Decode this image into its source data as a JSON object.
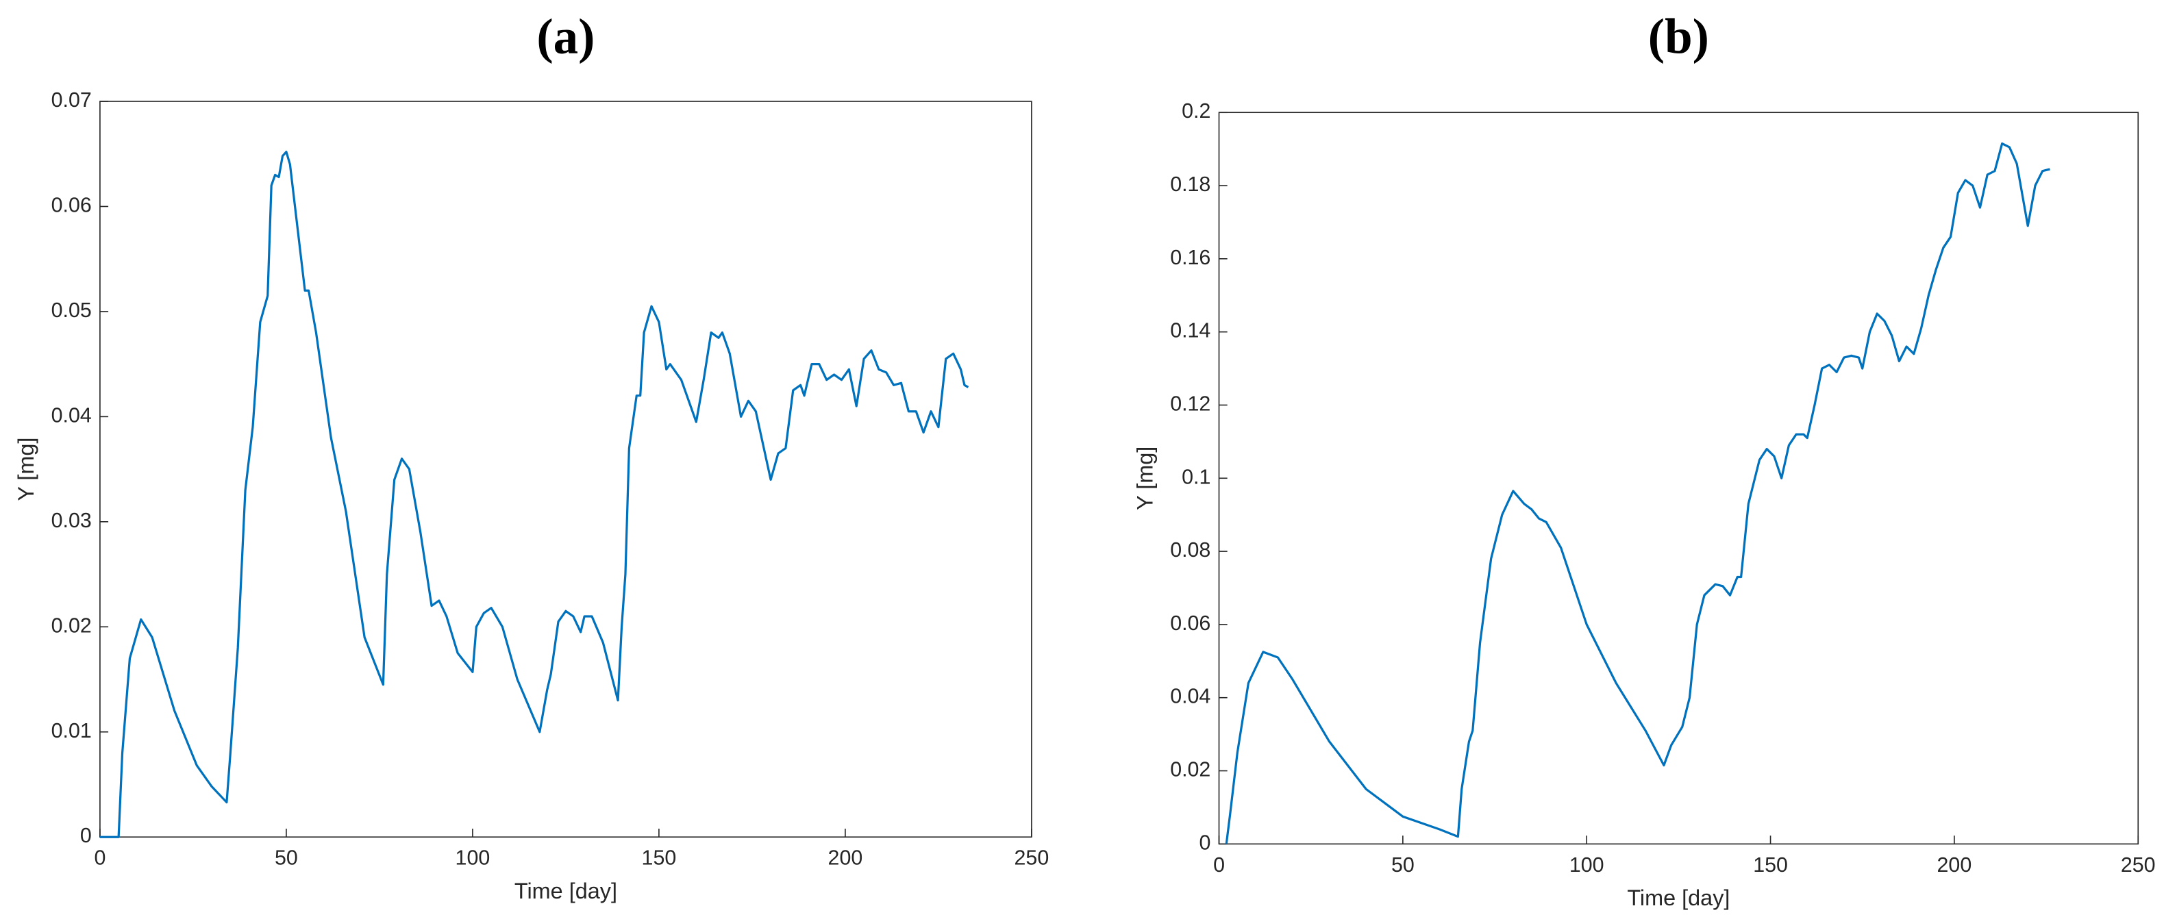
{
  "chart_data": [
    {
      "type": "line",
      "title": "(a)",
      "x_label": "Time [day]",
      "y_label": "Y [mg]",
      "color": "#0072bd",
      "x": [
        0,
        5,
        6,
        8,
        11,
        14,
        20,
        26,
        30,
        34,
        35,
        37,
        39,
        41,
        43,
        45,
        46,
        47,
        48,
        49,
        50,
        51,
        53,
        55,
        56,
        58,
        62,
        66,
        71,
        76,
        77,
        79,
        81,
        83,
        86,
        89,
        91,
        93,
        96,
        100,
        101,
        103,
        105,
        108,
        112,
        118,
        120,
        121,
        123,
        125,
        127,
        129,
        130,
        132,
        135,
        139,
        140,
        141,
        142,
        144,
        145,
        146,
        148,
        150,
        152,
        153,
        156,
        160,
        162,
        164,
        166,
        167,
        169,
        172,
        174,
        176,
        180,
        182,
        184,
        186,
        188,
        189,
        191,
        193,
        195,
        197,
        199,
        201,
        203,
        205,
        207,
        209,
        211,
        213,
        215,
        217,
        219,
        221,
        223,
        225,
        227,
        229,
        231,
        232,
        233
      ],
      "values": [
        0,
        0,
        0.008,
        0.017,
        0.0207,
        0.019,
        0.012,
        0.0068,
        0.0048,
        0.0033,
        0.008,
        0.018,
        0.033,
        0.039,
        0.049,
        0.0515,
        0.062,
        0.063,
        0.0628,
        0.0648,
        0.0652,
        0.064,
        0.058,
        0.052,
        0.052,
        0.048,
        0.038,
        0.031,
        0.019,
        0.0145,
        0.025,
        0.034,
        0.036,
        0.035,
        0.029,
        0.022,
        0.0225,
        0.021,
        0.0175,
        0.0157,
        0.02,
        0.0213,
        0.0218,
        0.02,
        0.015,
        0.01,
        0.014,
        0.0155,
        0.0205,
        0.0215,
        0.021,
        0.0195,
        0.021,
        0.021,
        0.0185,
        0.013,
        0.02,
        0.025,
        0.037,
        0.042,
        0.042,
        0.048,
        0.0505,
        0.049,
        0.0445,
        0.045,
        0.0435,
        0.0395,
        0.0435,
        0.048,
        0.0475,
        0.048,
        0.046,
        0.04,
        0.0415,
        0.0405,
        0.034,
        0.0365,
        0.037,
        0.0425,
        0.043,
        0.042,
        0.045,
        0.045,
        0.0435,
        0.044,
        0.0435,
        0.0445,
        0.041,
        0.0455,
        0.0463,
        0.0445,
        0.0442,
        0.043,
        0.0432,
        0.0405,
        0.0405,
        0.0385,
        0.0405,
        0.039,
        0.0455,
        0.046,
        0.0445,
        0.043,
        0.0428
      ],
      "xlim": [
        0,
        250
      ],
      "xticks": [
        0,
        50,
        100,
        150,
        200,
        250
      ],
      "ylim": [
        0,
        0.07
      ],
      "yticks": [
        0,
        0.01,
        0.02,
        0.03,
        0.04,
        0.05,
        0.06,
        0.07
      ]
    },
    {
      "type": "line",
      "title": "(b)",
      "x_label": "Time [day]",
      "y_label": "Y [mg]",
      "color": "#0072bd",
      "x": [
        2,
        3,
        5,
        8,
        12,
        16,
        20,
        30,
        40,
        50,
        60,
        65,
        66,
        68,
        69,
        71,
        74,
        77,
        80,
        83,
        85,
        87,
        89,
        93,
        100,
        108,
        116,
        121,
        123,
        126,
        128,
        130,
        132,
        135,
        137,
        139,
        141,
        142,
        144,
        147,
        149,
        151,
        153,
        155,
        157,
        159,
        160,
        162,
        164,
        166,
        168,
        170,
        172,
        174,
        175,
        177,
        179,
        181,
        183,
        185,
        187,
        189,
        191,
        193,
        195,
        197,
        199,
        201,
        203,
        205,
        207,
        209,
        211,
        213,
        215,
        217,
        220,
        222,
        224,
        226
      ],
      "values": [
        0,
        0.008,
        0.025,
        0.044,
        0.0525,
        0.051,
        0.045,
        0.028,
        0.015,
        0.0075,
        0.004,
        0.002,
        0.015,
        0.028,
        0.031,
        0.055,
        0.078,
        0.09,
        0.0965,
        0.093,
        0.0915,
        0.089,
        0.088,
        0.081,
        0.06,
        0.044,
        0.031,
        0.0215,
        0.027,
        0.032,
        0.04,
        0.06,
        0.068,
        0.071,
        0.0705,
        0.068,
        0.073,
        0.073,
        0.093,
        0.105,
        0.108,
        0.106,
        0.1,
        0.109,
        0.112,
        0.112,
        0.111,
        0.12,
        0.13,
        0.131,
        0.129,
        0.133,
        0.1335,
        0.133,
        0.13,
        0.14,
        0.145,
        0.143,
        0.139,
        0.132,
        0.136,
        0.134,
        0.141,
        0.15,
        0.157,
        0.163,
        0.166,
        0.178,
        0.1815,
        0.18,
        0.174,
        0.183,
        0.184,
        0.1915,
        0.1905,
        0.186,
        0.169,
        0.18,
        0.184,
        0.1845
      ],
      "xlim": [
        0,
        250
      ],
      "xticks": [
        0,
        50,
        100,
        150,
        200,
        250
      ],
      "ylim": [
        0,
        0.2
      ],
      "yticks": [
        0,
        0.02,
        0.04,
        0.06,
        0.08,
        0.1,
        0.12,
        0.14,
        0.16,
        0.18,
        0.2
      ]
    }
  ]
}
